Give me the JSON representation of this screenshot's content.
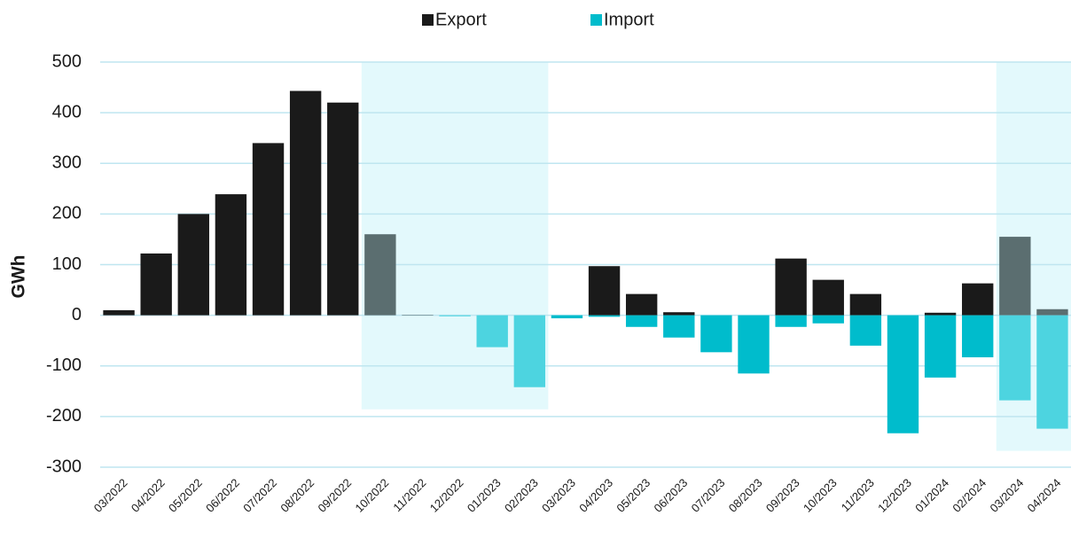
{
  "chart_data": {
    "type": "bar",
    "categories": [
      "03/2022",
      "04/2022",
      "05/2022",
      "06/2022",
      "07/2022",
      "08/2022",
      "09/2022",
      "10/2022",
      "11/2022",
      "12/2022",
      "01/2023",
      "02/2023",
      "03/2023",
      "04/2023",
      "05/2023",
      "06/2023",
      "07/2023",
      "08/2023",
      "09/2023",
      "10/2023",
      "11/2023",
      "12/2023",
      "01/2024",
      "02/2024",
      "03/2024",
      "04/2024"
    ],
    "series": [
      {
        "name": "Export",
        "color": "#1a1a1a",
        "highlight_color": "#5b6e70",
        "values": [
          10,
          122,
          200,
          239,
          340,
          443,
          420,
          160,
          1,
          0,
          0,
          0,
          0,
          97,
          42,
          6,
          0,
          0,
          112,
          70,
          42,
          0,
          5,
          63,
          155,
          12
        ]
      },
      {
        "name": "Import",
        "color": "#00bccc",
        "highlight_color": "#4dd4e0",
        "values": [
          0,
          0,
          0,
          0,
          0,
          0,
          0,
          0,
          0,
          -2,
          -63,
          -142,
          -6,
          -3,
          -23,
          -44,
          -73,
          -115,
          -23,
          -16,
          -60,
          -233,
          -123,
          -83,
          -168,
          -224
        ]
      }
    ],
    "highlight": [
      false,
      false,
      false,
      false,
      false,
      false,
      false,
      true,
      true,
      true,
      true,
      true,
      false,
      false,
      false,
      false,
      false,
      false,
      false,
      false,
      false,
      false,
      false,
      false,
      true,
      true
    ],
    "y_label": "GWh",
    "ylim": [
      -300,
      500
    ],
    "yticks": [
      -300,
      -200,
      -100,
      0,
      100,
      200,
      300,
      400,
      500
    ],
    "grid": true,
    "legend": "top"
  }
}
